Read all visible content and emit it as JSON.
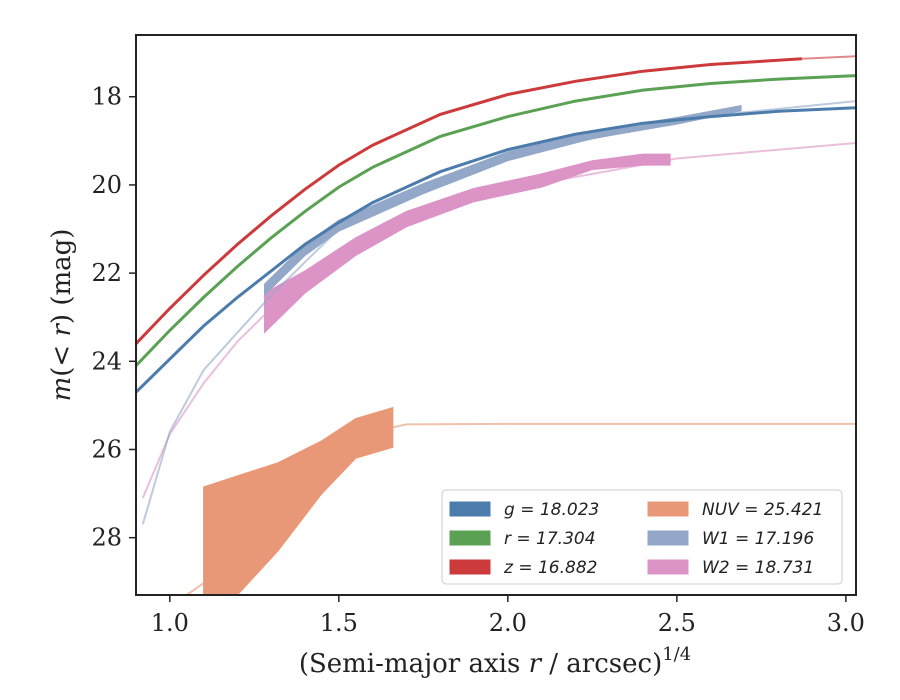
{
  "chart_data": {
    "type": "line",
    "xlabel": "(Semi-major axis r / arcsec)",
    "xlabel_exponent": "1/4",
    "ylabel": "m(< r) (mag)",
    "xlim": [
      0.9,
      3.03
    ],
    "ylim": [
      29.3,
      16.6
    ],
    "y_inverted": true,
    "grid": false,
    "legend_position": "lower-right",
    "legend_columns": 2,
    "x_ticks": [
      {
        "value": 1.0,
        "label": "1.0"
      },
      {
        "value": 1.5,
        "label": "1.5"
      },
      {
        "value": 2.0,
        "label": "2.0"
      },
      {
        "value": 2.5,
        "label": "2.5"
      },
      {
        "value": 3.0,
        "label": "3.0"
      }
    ],
    "y_ticks": [
      {
        "value": 18,
        "label": "18"
      },
      {
        "value": 20,
        "label": "20"
      },
      {
        "value": 22,
        "label": "22"
      },
      {
        "value": 24,
        "label": "24"
      },
      {
        "value": 26,
        "label": "26"
      },
      {
        "value": 28,
        "label": "28"
      }
    ],
    "series": [
      {
        "name": "g",
        "legend": "g = 18.023",
        "color": "#4c7cab",
        "data": [
          [
            0.9,
            24.7
          ],
          [
            1.0,
            23.95
          ],
          [
            1.1,
            23.2
          ],
          [
            1.2,
            22.55
          ],
          [
            1.3,
            21.95
          ],
          [
            1.4,
            21.35
          ],
          [
            1.5,
            20.85
          ],
          [
            1.6,
            20.4
          ],
          [
            1.8,
            19.7
          ],
          [
            2.0,
            19.2
          ],
          [
            2.2,
            18.85
          ],
          [
            2.4,
            18.6
          ],
          [
            2.6,
            18.45
          ],
          [
            2.8,
            18.33
          ],
          [
            3.03,
            18.25
          ]
        ]
      },
      {
        "name": "r",
        "legend": "r = 17.304",
        "color": "#5aa153",
        "data": [
          [
            0.9,
            24.1
          ],
          [
            1.0,
            23.3
          ],
          [
            1.1,
            22.55
          ],
          [
            1.2,
            21.85
          ],
          [
            1.3,
            21.2
          ],
          [
            1.4,
            20.6
          ],
          [
            1.5,
            20.05
          ],
          [
            1.6,
            19.6
          ],
          [
            1.8,
            18.9
          ],
          [
            2.0,
            18.45
          ],
          [
            2.2,
            18.1
          ],
          [
            2.4,
            17.85
          ],
          [
            2.6,
            17.7
          ],
          [
            2.8,
            17.6
          ],
          [
            3.03,
            17.52
          ]
        ]
      },
      {
        "name": "z",
        "legend": "z = 16.882",
        "color": "#cc3a3b",
        "data": [
          [
            0.9,
            23.6
          ],
          [
            1.0,
            22.8
          ],
          [
            1.1,
            22.05
          ],
          [
            1.2,
            21.35
          ],
          [
            1.3,
            20.7
          ],
          [
            1.4,
            20.1
          ],
          [
            1.5,
            19.55
          ],
          [
            1.6,
            19.1
          ],
          [
            1.8,
            18.4
          ],
          [
            2.0,
            17.95
          ],
          [
            2.2,
            17.65
          ],
          [
            2.4,
            17.42
          ],
          [
            2.6,
            17.27
          ],
          [
            2.87,
            17.14
          ]
        ],
        "extrapolation": [
          [
            2.87,
            17.14
          ],
          [
            3.03,
            17.08
          ]
        ]
      },
      {
        "name": "W1",
        "legend": "W1 = 17.196",
        "color": "#93a7c8",
        "band": [
          [
            1.28,
            22.5,
            22.25
          ],
          [
            1.4,
            21.6,
            21.35
          ],
          [
            1.5,
            21.05,
            20.8
          ],
          [
            1.75,
            20.2,
            19.97
          ],
          [
            2.0,
            19.45,
            19.25
          ],
          [
            2.25,
            18.95,
            18.78
          ],
          [
            2.5,
            18.62,
            18.47
          ],
          [
            2.69,
            18.32,
            18.2
          ]
        ],
        "model": [
          [
            0.92,
            27.7
          ],
          [
            1.0,
            25.6
          ],
          [
            1.1,
            24.2
          ],
          [
            1.2,
            23.35
          ],
          [
            1.3,
            22.5
          ],
          [
            1.5,
            21.0
          ],
          [
            1.75,
            20.15
          ],
          [
            2.0,
            19.35
          ],
          [
            2.5,
            18.55
          ],
          [
            2.7,
            18.35
          ],
          [
            3.03,
            18.1
          ]
        ]
      },
      {
        "name": "W2",
        "legend": "W2 = 18.731",
        "color": "#dc93c6",
        "band": [
          [
            1.28,
            23.35,
            22.45
          ],
          [
            1.4,
            22.45,
            21.95
          ],
          [
            1.55,
            21.6,
            21.2
          ],
          [
            1.7,
            20.95,
            20.6
          ],
          [
            1.9,
            20.38,
            20.08
          ],
          [
            2.1,
            20.05,
            19.75
          ],
          [
            2.25,
            19.65,
            19.45
          ],
          [
            2.4,
            19.55,
            19.3
          ],
          [
            2.48,
            19.55,
            19.3
          ]
        ],
        "model": [
          [
            0.92,
            27.1
          ],
          [
            1.0,
            25.65
          ],
          [
            1.1,
            24.5
          ],
          [
            1.2,
            23.55
          ],
          [
            1.3,
            22.8
          ],
          [
            1.5,
            21.6
          ],
          [
            1.7,
            20.85
          ],
          [
            2.0,
            20.1
          ],
          [
            2.5,
            19.4
          ],
          [
            3.03,
            19.05
          ]
        ]
      },
      {
        "name": "NUV",
        "legend": "NUV = 25.421",
        "color": "#e99877",
        "band": [
          [
            1.1,
            29.3,
            26.85
          ],
          [
            1.2,
            29.3,
            26.6
          ],
          [
            1.32,
            28.3,
            26.3
          ],
          [
            1.45,
            27.0,
            25.8
          ],
          [
            1.55,
            26.2,
            25.3
          ],
          [
            1.66,
            25.95,
            25.05
          ]
        ],
        "model": [
          [
            1.05,
            29.3
          ],
          [
            1.2,
            28.5
          ],
          [
            1.3,
            27.7
          ],
          [
            1.4,
            26.9
          ],
          [
            1.5,
            26.2
          ],
          [
            1.6,
            25.6
          ],
          [
            1.7,
            25.43
          ],
          [
            2.0,
            25.42
          ],
          [
            3.03,
            25.42
          ]
        ]
      }
    ]
  }
}
